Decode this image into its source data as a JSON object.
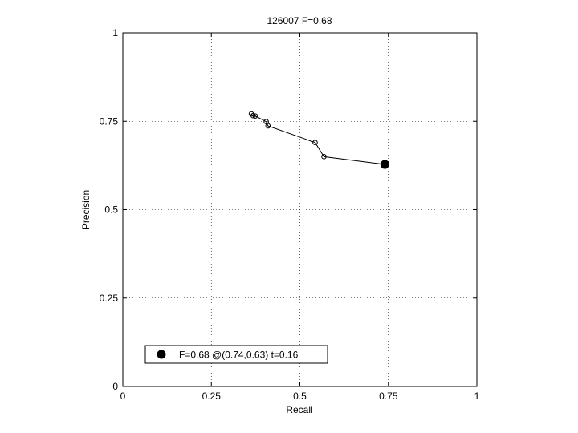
{
  "chart_data": {
    "type": "line",
    "title": "126007 F=0.68",
    "xlabel": "Recall",
    "ylabel": "Precision",
    "xlim": [
      0,
      1
    ],
    "ylim": [
      0,
      1
    ],
    "xticks": [
      0,
      0.25,
      0.5,
      0.75,
      1
    ],
    "xtick_labels": [
      "0",
      "0.25",
      "0.5",
      "0.75",
      "1"
    ],
    "yticks": [
      0,
      0.25,
      0.5,
      0.75,
      1
    ],
    "ytick_labels": [
      "0",
      "0.25",
      "0.5",
      "0.75",
      "1"
    ],
    "grid": true,
    "legend_position": "bottom-left",
    "series": [
      {
        "marker": "open-circle",
        "color": "#000000",
        "x": [
          0.363,
          0.368,
          0.374,
          0.405,
          0.41,
          0.543,
          0.568,
          0.74
        ],
        "y": [
          0.771,
          0.766,
          0.765,
          0.749,
          0.737,
          0.69,
          0.65,
          0.628
        ]
      }
    ],
    "highlight": {
      "label": "F=0.68 @(0.74,0.63) t=0.16",
      "x": 0.74,
      "y": 0.628,
      "marker": "filled-circle",
      "color": "#000000"
    }
  }
}
